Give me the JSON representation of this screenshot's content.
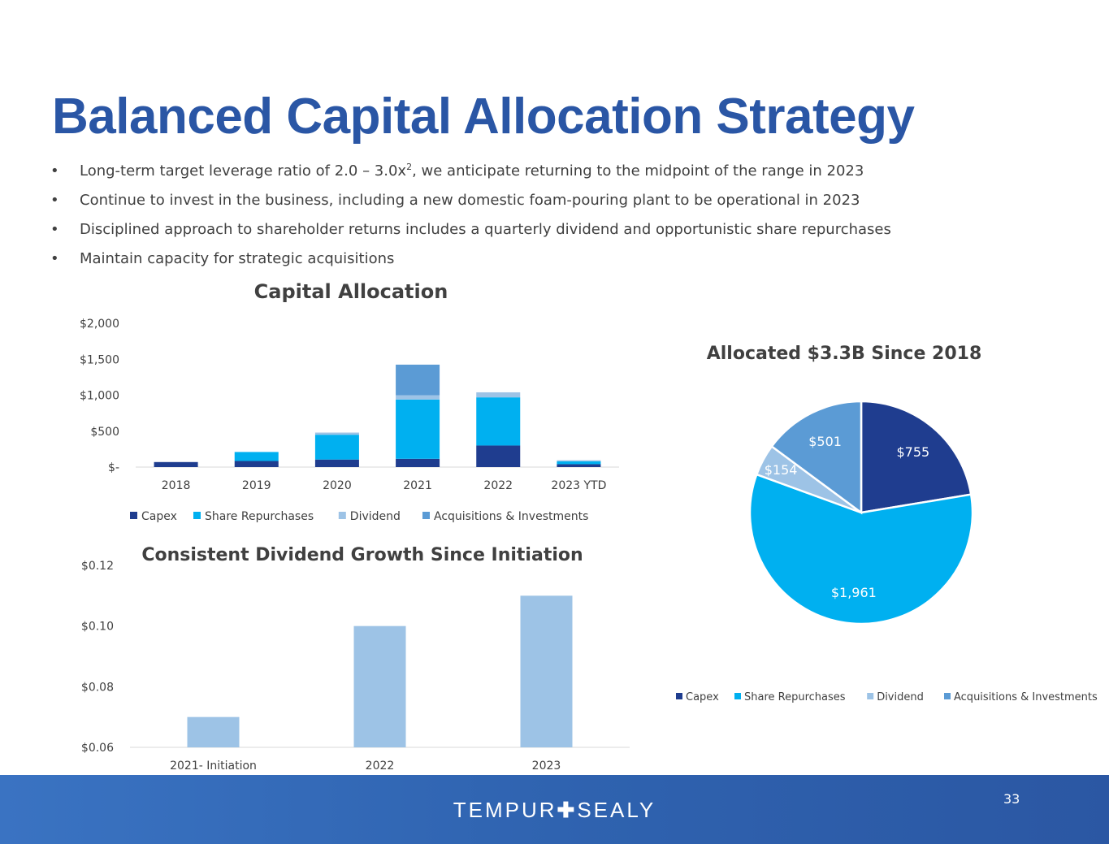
{
  "page": {
    "title": "Balanced Capital Allocation Strategy",
    "bullets": [
      {
        "pre": "Long-term target leverage ratio of 2.0 – 3.0x",
        "sup": "2",
        "post": ", we anticipate returning to the midpoint of the range in 2023"
      },
      {
        "pre": "Continue to invest in the business, including a new domestic foam-pouring plant to be operational in 2023",
        "sup": "",
        "post": ""
      },
      {
        "pre": "Disciplined approach to shareholder returns includes a quarterly dividend and opportunistic share repurchases",
        "sup": "",
        "post": ""
      },
      {
        "pre": "Maintain capacity for strategic acquisitions",
        "sup": "",
        "post": ""
      }
    ],
    "bullet_symbol": "•",
    "footer": {
      "logo_left": "TEMPUR",
      "logo_mark": "✚",
      "logo_right": "SEALY",
      "page_number": "33"
    }
  },
  "colors": {
    "title": "#2a56a5",
    "capex": "#1f3d8f",
    "share_repurchases": "#00b0f0",
    "dividend": "#9dc3e6",
    "acquisitions": "#5b9bd5",
    "footer": "#2f63b0"
  },
  "chart_data": [
    {
      "type": "bar",
      "stacked": true,
      "title": "Capital Allocation",
      "categories": [
        "2018",
        "2019",
        "2020",
        "2021",
        "2022",
        "2023 YTD"
      ],
      "series": [
        {
          "name": "Capex",
          "color": "#1f3d8f",
          "values": [
            70,
            85,
            105,
            115,
            300,
            40
          ]
        },
        {
          "name": "Share Repurchases",
          "color": "#00b0f0",
          "values": [
            0,
            125,
            345,
            825,
            670,
            40
          ]
        },
        {
          "name": "Dividend",
          "color": "#9dc3e6",
          "values": [
            0,
            0,
            30,
            60,
            70,
            15
          ]
        },
        {
          "name": "Acquisitions & Investments",
          "color": "#5b9bd5",
          "values": [
            0,
            0,
            0,
            425,
            0,
            0
          ]
        }
      ],
      "yticks": [
        "$-",
        "$500",
        "$1,000",
        "$1,500",
        "$2,000"
      ],
      "ylim": [
        0,
        2000
      ],
      "legend": "bottom"
    },
    {
      "type": "bar",
      "title": "Consistent Dividend Growth Since Initiation",
      "categories": [
        "2021- Initiation",
        "2022",
        "2023"
      ],
      "values": [
        0.07,
        0.1,
        0.11
      ],
      "color": "#9dc3e6",
      "yticks": [
        "$0.06",
        "$0.08",
        "$0.10",
        "$0.12"
      ],
      "ylim": [
        0.06,
        0.12
      ]
    },
    {
      "type": "pie",
      "title": "Allocated $3.3B Since 2018",
      "labels": [
        "Capex",
        "Share Repurchases",
        "Dividend",
        "Acquisitions & Investments"
      ],
      "values": [
        755,
        1961,
        154,
        501
      ],
      "value_labels": [
        "$755",
        "$1,961",
        "$154",
        "$501"
      ],
      "colors": [
        "#1f3d8f",
        "#00b0f0",
        "#9dc3e6",
        "#5b9bd5"
      ],
      "legend": "bottom"
    }
  ]
}
